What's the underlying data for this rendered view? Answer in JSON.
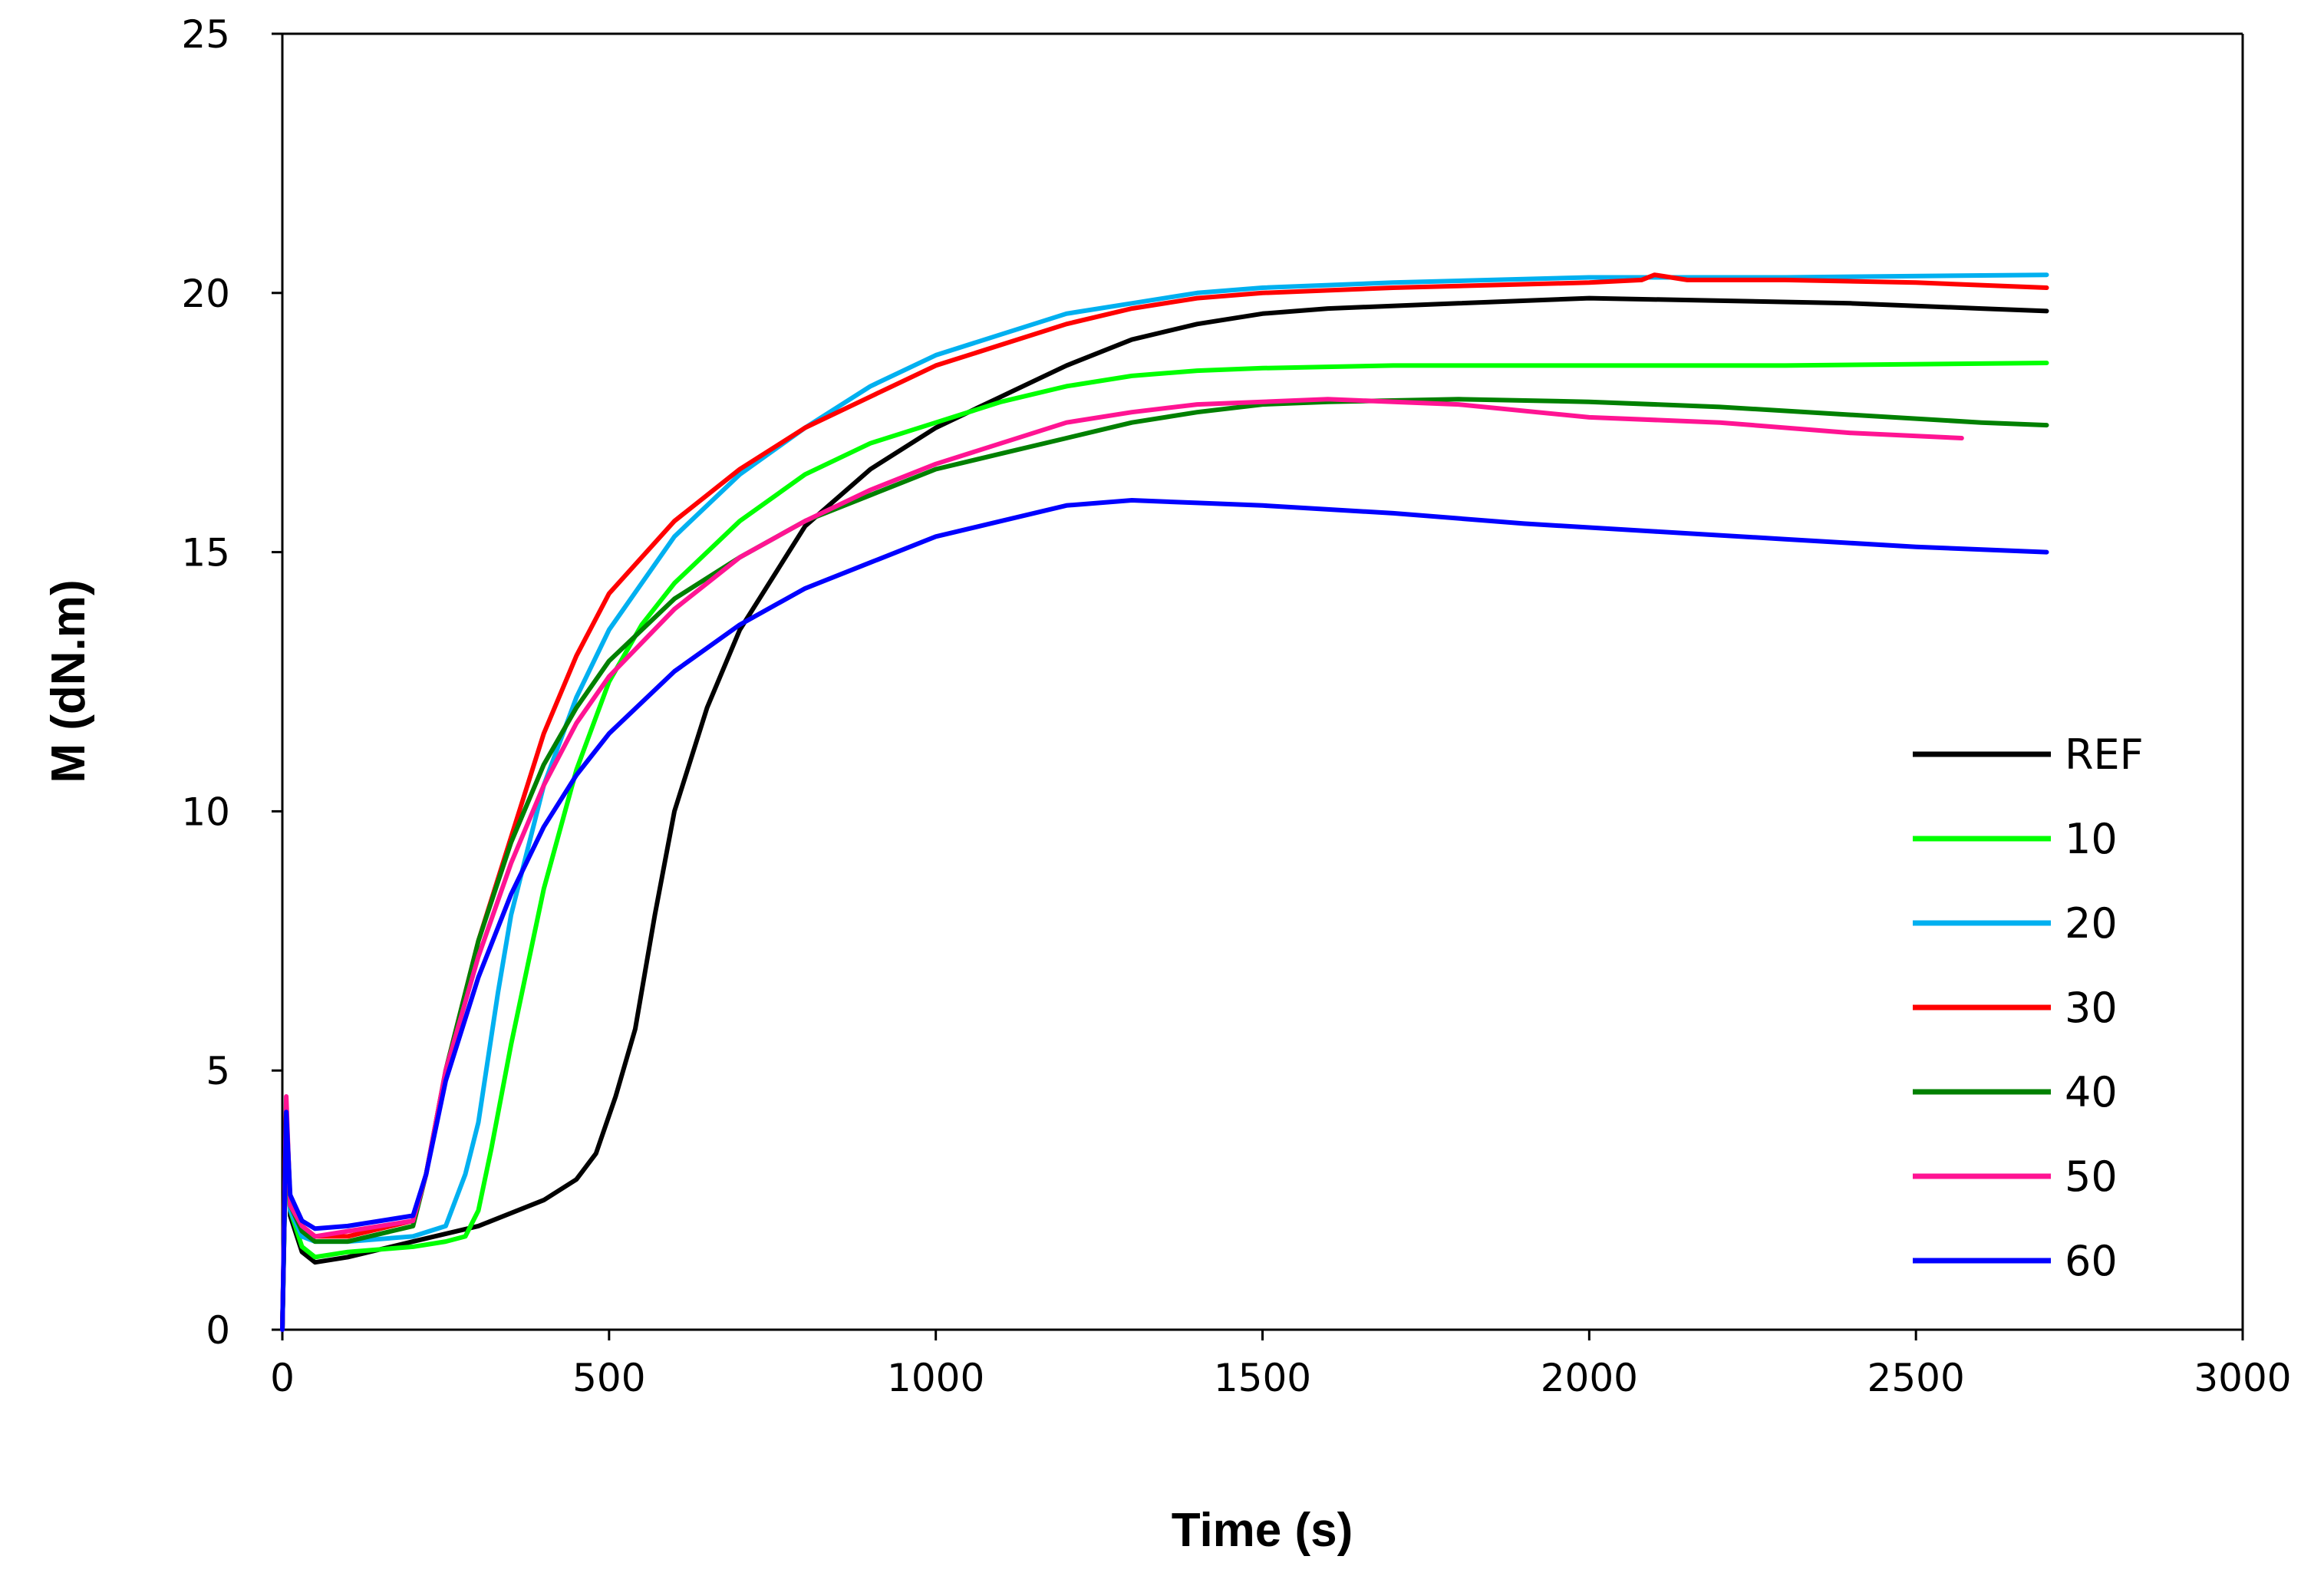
{
  "chart_data": {
    "type": "line",
    "title": "",
    "xlabel": "Time (s)",
    "ylabel": "M (dN.m)",
    "xlim": [
      0,
      3000
    ],
    "ylim": [
      0,
      25
    ],
    "xticks": [
      0,
      500,
      1000,
      1500,
      2000,
      2500,
      3000
    ],
    "yticks": [
      0,
      5,
      10,
      15,
      20,
      25
    ],
    "grid": false,
    "legend_position": "right",
    "series": [
      {
        "name": "REF",
        "color": "#000000",
        "points": [
          [
            0,
            0
          ],
          [
            6,
            4.0
          ],
          [
            12,
            2.2
          ],
          [
            30,
            1.5
          ],
          [
            50,
            1.3
          ],
          [
            100,
            1.4
          ],
          [
            200,
            1.7
          ],
          [
            300,
            2.0
          ],
          [
            400,
            2.5
          ],
          [
            450,
            2.9
          ],
          [
            480,
            3.4
          ],
          [
            510,
            4.5
          ],
          [
            540,
            5.8
          ],
          [
            570,
            8.0
          ],
          [
            600,
            10.0
          ],
          [
            650,
            12.0
          ],
          [
            700,
            13.5
          ],
          [
            800,
            15.5
          ],
          [
            900,
            16.6
          ],
          [
            1000,
            17.4
          ],
          [
            1100,
            18.0
          ],
          [
            1200,
            18.6
          ],
          [
            1300,
            19.1
          ],
          [
            1400,
            19.4
          ],
          [
            1500,
            19.6
          ],
          [
            1600,
            19.7
          ],
          [
            1800,
            19.8
          ],
          [
            2000,
            19.9
          ],
          [
            2200,
            19.85
          ],
          [
            2400,
            19.8
          ],
          [
            2600,
            19.7
          ],
          [
            2700,
            19.65
          ]
        ]
      },
      {
        "name": "10",
        "color": "#00ff00",
        "points": [
          [
            0,
            0
          ],
          [
            6,
            4.0
          ],
          [
            12,
            2.3
          ],
          [
            30,
            1.6
          ],
          [
            50,
            1.4
          ],
          [
            100,
            1.5
          ],
          [
            200,
            1.6
          ],
          [
            250,
            1.7
          ],
          [
            280,
            1.8
          ],
          [
            300,
            2.3
          ],
          [
            320,
            3.5
          ],
          [
            350,
            5.5
          ],
          [
            400,
            8.5
          ],
          [
            450,
            10.8
          ],
          [
            500,
            12.5
          ],
          [
            550,
            13.6
          ],
          [
            600,
            14.4
          ],
          [
            700,
            15.6
          ],
          [
            800,
            16.5
          ],
          [
            900,
            17.1
          ],
          [
            1000,
            17.5
          ],
          [
            1100,
            17.9
          ],
          [
            1200,
            18.2
          ],
          [
            1300,
            18.4
          ],
          [
            1400,
            18.5
          ],
          [
            1500,
            18.55
          ],
          [
            1700,
            18.6
          ],
          [
            2000,
            18.6
          ],
          [
            2300,
            18.6
          ],
          [
            2700,
            18.65
          ]
        ]
      },
      {
        "name": "20",
        "color": "#00b0f0",
        "points": [
          [
            0,
            0
          ],
          [
            6,
            4.2
          ],
          [
            12,
            2.3
          ],
          [
            30,
            1.8
          ],
          [
            50,
            1.7
          ],
          [
            100,
            1.7
          ],
          [
            200,
            1.8
          ],
          [
            250,
            2.0
          ],
          [
            280,
            3.0
          ],
          [
            300,
            4.0
          ],
          [
            330,
            6.5
          ],
          [
            350,
            8.0
          ],
          [
            400,
            10.5
          ],
          [
            450,
            12.2
          ],
          [
            500,
            13.5
          ],
          [
            600,
            15.3
          ],
          [
            700,
            16.5
          ],
          [
            800,
            17.4
          ],
          [
            900,
            18.2
          ],
          [
            1000,
            18.8
          ],
          [
            1100,
            19.2
          ],
          [
            1200,
            19.6
          ],
          [
            1300,
            19.8
          ],
          [
            1400,
            20.0
          ],
          [
            1500,
            20.1
          ],
          [
            1700,
            20.2
          ],
          [
            2000,
            20.3
          ],
          [
            2300,
            20.3
          ],
          [
            2700,
            20.35
          ]
        ]
      },
      {
        "name": "30",
        "color": "#ff0000",
        "points": [
          [
            0,
            0
          ],
          [
            6,
            4.3
          ],
          [
            12,
            2.5
          ],
          [
            30,
            2.0
          ],
          [
            50,
            1.8
          ],
          [
            100,
            1.8
          ],
          [
            200,
            2.1
          ],
          [
            220,
            3.0
          ],
          [
            250,
            5.0
          ],
          [
            300,
            7.5
          ],
          [
            350,
            9.5
          ],
          [
            400,
            11.5
          ],
          [
            450,
            13.0
          ],
          [
            500,
            14.2
          ],
          [
            600,
            15.6
          ],
          [
            700,
            16.6
          ],
          [
            800,
            17.4
          ],
          [
            900,
            18.0
          ],
          [
            1000,
            18.6
          ],
          [
            1100,
            19.0
          ],
          [
            1200,
            19.4
          ],
          [
            1300,
            19.7
          ],
          [
            1400,
            19.9
          ],
          [
            1500,
            20.0
          ],
          [
            1700,
            20.1
          ],
          [
            2000,
            20.2
          ],
          [
            2080,
            20.25
          ],
          [
            2100,
            20.35
          ],
          [
            2150,
            20.25
          ],
          [
            2300,
            20.25
          ],
          [
            2500,
            20.2
          ],
          [
            2700,
            20.1
          ]
        ]
      },
      {
        "name": "40",
        "color": "#008000",
        "points": [
          [
            0,
            0
          ],
          [
            6,
            4.0
          ],
          [
            12,
            2.4
          ],
          [
            30,
            1.9
          ],
          [
            50,
            1.7
          ],
          [
            100,
            1.7
          ],
          [
            200,
            2.0
          ],
          [
            220,
            3.0
          ],
          [
            250,
            5.0
          ],
          [
            300,
            7.5
          ],
          [
            350,
            9.4
          ],
          [
            400,
            10.9
          ],
          [
            450,
            12.0
          ],
          [
            500,
            12.9
          ],
          [
            600,
            14.1
          ],
          [
            700,
            14.9
          ],
          [
            800,
            15.6
          ],
          [
            900,
            16.1
          ],
          [
            1000,
            16.6
          ],
          [
            1100,
            16.9
          ],
          [
            1200,
            17.2
          ],
          [
            1300,
            17.5
          ],
          [
            1400,
            17.7
          ],
          [
            1500,
            17.85
          ],
          [
            1600,
            17.9
          ],
          [
            1800,
            17.95
          ],
          [
            2000,
            17.9
          ],
          [
            2200,
            17.8
          ],
          [
            2400,
            17.65
          ],
          [
            2600,
            17.5
          ],
          [
            2700,
            17.45
          ]
        ]
      },
      {
        "name": "50",
        "color": "#ff1493",
        "points": [
          [
            0,
            0
          ],
          [
            6,
            4.5
          ],
          [
            12,
            2.4
          ],
          [
            30,
            2.0
          ],
          [
            50,
            1.8
          ],
          [
            100,
            1.9
          ],
          [
            200,
            2.1
          ],
          [
            220,
            3.0
          ],
          [
            250,
            5.0
          ],
          [
            300,
            7.2
          ],
          [
            350,
            9.0
          ],
          [
            400,
            10.5
          ],
          [
            450,
            11.7
          ],
          [
            500,
            12.6
          ],
          [
            600,
            13.9
          ],
          [
            700,
            14.9
          ],
          [
            800,
            15.6
          ],
          [
            900,
            16.2
          ],
          [
            1000,
            16.7
          ],
          [
            1100,
            17.1
          ],
          [
            1200,
            17.5
          ],
          [
            1300,
            17.7
          ],
          [
            1400,
            17.85
          ],
          [
            1500,
            17.9
          ],
          [
            1600,
            17.95
          ],
          [
            1800,
            17.85
          ],
          [
            2000,
            17.6
          ],
          [
            2200,
            17.5
          ],
          [
            2400,
            17.3
          ],
          [
            2570,
            17.2
          ]
        ]
      },
      {
        "name": "60",
        "color": "#0000ff",
        "points": [
          [
            0,
            0
          ],
          [
            6,
            4.2
          ],
          [
            12,
            2.6
          ],
          [
            30,
            2.1
          ],
          [
            50,
            1.95
          ],
          [
            100,
            2.0
          ],
          [
            200,
            2.2
          ],
          [
            220,
            3.0
          ],
          [
            250,
            4.8
          ],
          [
            300,
            6.8
          ],
          [
            350,
            8.4
          ],
          [
            400,
            9.7
          ],
          [
            450,
            10.7
          ],
          [
            500,
            11.5
          ],
          [
            600,
            12.7
          ],
          [
            700,
            13.6
          ],
          [
            800,
            14.3
          ],
          [
            900,
            14.8
          ],
          [
            1000,
            15.3
          ],
          [
            1100,
            15.6
          ],
          [
            1200,
            15.9
          ],
          [
            1300,
            16.0
          ],
          [
            1400,
            15.95
          ],
          [
            1500,
            15.9
          ],
          [
            1700,
            15.75
          ],
          [
            1900,
            15.55
          ],
          [
            2100,
            15.4
          ],
          [
            2300,
            15.25
          ],
          [
            2500,
            15.1
          ],
          [
            2700,
            15.0
          ]
        ]
      }
    ]
  }
}
